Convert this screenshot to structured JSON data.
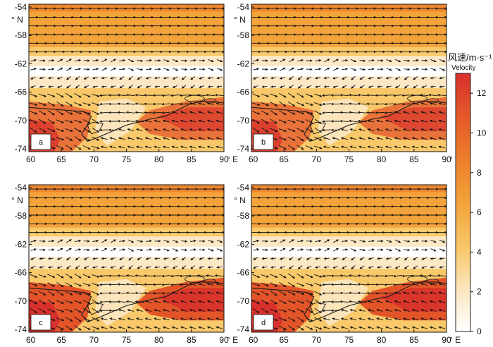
{
  "colorbar": {
    "title": "风速/m·s⁻¹",
    "subtitle": "Velocity",
    "min": 0,
    "max": 13,
    "ticks": [
      "0",
      "2",
      "4",
      "6",
      "8",
      "10",
      "12"
    ],
    "colors": [
      "#ffffff",
      "#fce8c4",
      "#f8c86a",
      "#f3a33a",
      "#ec7b2b",
      "#e35529",
      "#d8302c"
    ]
  },
  "axes": {
    "lat_ticks": [
      "-54",
      "-58",
      "-62",
      "-66",
      "-70",
      "-74"
    ],
    "lat_unit": "° N",
    "lon_ticks": [
      "60",
      "65",
      "70",
      "75",
      "80",
      "85",
      "90"
    ],
    "lon_unit": "° E"
  },
  "panels": [
    {
      "label": "a"
    },
    {
      "label": "b"
    },
    {
      "label": "c"
    },
    {
      "label": "d"
    }
  ]
}
